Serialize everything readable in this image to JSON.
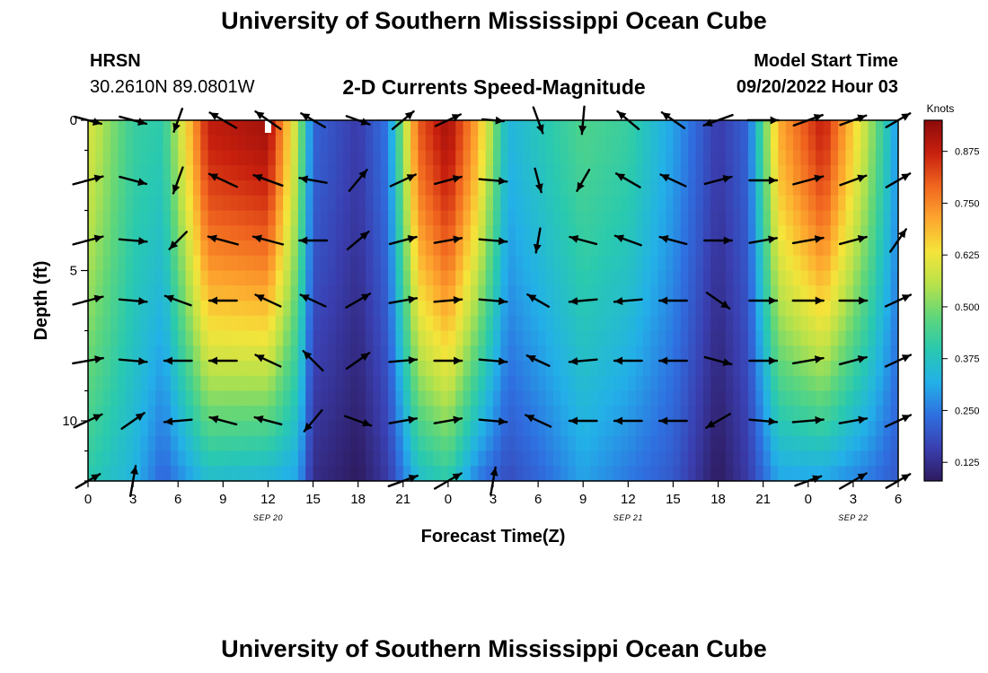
{
  "header": {
    "title": "University of Southern Mississippi Ocean Cube",
    "station": "HRSN",
    "coordinates": "30.2610N  89.0801W",
    "chart_title": "2-D Currents Speed-Magnitude",
    "model_start_label": "Model Start Time",
    "model_start_value": "09/20/2022 Hour 03"
  },
  "footer": {
    "title": "University of Southern Mississippi Ocean Cube"
  },
  "chart_data": {
    "type": "heatmap",
    "title": "2-D Currents Speed-Magnitude",
    "xlabel": "Forecast Time(Z)",
    "ylabel": "Depth (ft)",
    "x_hours": [
      0,
      54
    ],
    "x_tick_labels": [
      "0",
      "3",
      "6",
      "9",
      "12",
      "15",
      "18",
      "21",
      "0",
      "3",
      "6",
      "9",
      "12",
      "15",
      "18",
      "21",
      "0",
      "3",
      "6"
    ],
    "date_labels": [
      {
        "text": "SEP 20",
        "hour": 12
      },
      {
        "text": "SEP 21",
        "hour": 36
      },
      {
        "text": "SEP 22",
        "hour": 51
      }
    ],
    "y_range_ft": [
      0,
      12
    ],
    "y_ticks": [
      0,
      5,
      10
    ],
    "y_tick_labels": [
      "0",
      "5",
      "10"
    ],
    "colorbar": {
      "unit": "Knots",
      "min": 0.08,
      "max": 0.95,
      "ticks": [
        0.125,
        0.25,
        0.375,
        0.5,
        0.625,
        0.75,
        0.875
      ],
      "tick_labels": [
        "0.125",
        "0.250",
        "0.375",
        "0.500",
        "0.625",
        "0.750",
        "0.875"
      ]
    },
    "speed_model": {
      "description": "Approximate current speed (knots) by forecast hour at surface and at 12 ft depth",
      "anchors": [
        {
          "hour": 0,
          "surface": 0.6,
          "bottom": 0.4
        },
        {
          "hour": 3,
          "surface": 0.42,
          "bottom": 0.33
        },
        {
          "hour": 5,
          "surface": 0.4,
          "bottom": 0.22
        },
        {
          "hour": 8,
          "surface": 0.88,
          "bottom": 0.35
        },
        {
          "hour": 12,
          "surface": 0.92,
          "bottom": 0.33
        },
        {
          "hour": 14,
          "surface": 0.55,
          "bottom": 0.3
        },
        {
          "hour": 15,
          "surface": 0.22,
          "bottom": 0.12
        },
        {
          "hour": 18,
          "surface": 0.15,
          "bottom": 0.08
        },
        {
          "hour": 20,
          "surface": 0.25,
          "bottom": 0.15
        },
        {
          "hour": 22,
          "surface": 0.8,
          "bottom": 0.35
        },
        {
          "hour": 24,
          "surface": 0.92,
          "bottom": 0.4
        },
        {
          "hour": 26,
          "surface": 0.7,
          "bottom": 0.25
        },
        {
          "hour": 28,
          "surface": 0.33,
          "bottom": 0.18
        },
        {
          "hour": 30,
          "surface": 0.38,
          "bottom": 0.22
        },
        {
          "hour": 33,
          "surface": 0.45,
          "bottom": 0.3
        },
        {
          "hour": 36,
          "surface": 0.42,
          "bottom": 0.25
        },
        {
          "hour": 39,
          "surface": 0.3,
          "bottom": 0.2
        },
        {
          "hour": 42,
          "surface": 0.15,
          "bottom": 0.08
        },
        {
          "hour": 44,
          "surface": 0.22,
          "bottom": 0.15
        },
        {
          "hour": 46,
          "surface": 0.7,
          "bottom": 0.3
        },
        {
          "hour": 49,
          "surface": 0.88,
          "bottom": 0.3
        },
        {
          "hour": 52,
          "surface": 0.55,
          "bottom": 0.25
        },
        {
          "hour": 54,
          "surface": 0.28,
          "bottom": 0.2
        }
      ]
    },
    "vector_grid": {
      "description": "Velocity arrows at forecast hours 0–54 (every 3h) and depths 0–12 ft (every 2 ft); angle in degrees (0=east, counter-clockwise), relative length 0–1",
      "hours": [
        0,
        3,
        6,
        9,
        12,
        15,
        18,
        21,
        24,
        27,
        30,
        33,
        36,
        39,
        42,
        45,
        48,
        51,
        54
      ],
      "depths_ft": [
        0,
        2,
        4,
        6,
        8,
        10,
        12
      ],
      "angle_deg": [
        [
          -15,
          -15,
          -110,
          150,
          145,
          150,
          -20,
          40,
          25,
          -5,
          -70,
          -95,
          140,
          145,
          200,
          0,
          20,
          20,
          30
        ],
        [
          15,
          -15,
          -110,
          155,
          160,
          170,
          50,
          25,
          15,
          -5,
          -75,
          -120,
          150,
          155,
          15,
          0,
          15,
          20,
          30
        ],
        [
          15,
          -5,
          -135,
          165,
          165,
          180,
          40,
          15,
          10,
          -5,
          -100,
          165,
          160,
          165,
          0,
          10,
          10,
          15,
          55
        ],
        [
          15,
          -5,
          160,
          180,
          155,
          155,
          30,
          10,
          5,
          -5,
          150,
          -175,
          -175,
          -180,
          -35,
          0,
          0,
          0,
          25
        ],
        [
          10,
          -5,
          -180,
          180,
          155,
          135,
          35,
          5,
          0,
          -5,
          155,
          -175,
          -180,
          -180,
          -15,
          0,
          10,
          15,
          25
        ],
        [
          25,
          35,
          -175,
          165,
          165,
          -130,
          -20,
          10,
          10,
          -5,
          155,
          -180,
          -180,
          -180,
          -150,
          -5,
          5,
          10,
          25
        ],
        [
          30,
          80,
          -180,
          -180,
          -180,
          -180,
          0,
          20,
          30,
          80,
          -180,
          -180,
          -180,
          -180,
          -180,
          -180,
          20,
          30,
          30
        ]
      ],
      "length": [
        [
          0.9,
          0.9,
          0.8,
          1,
          1,
          0.9,
          0.8,
          0.9,
          0.9,
          0.7,
          0.9,
          0.9,
          0.9,
          0.9,
          1,
          1,
          1,
          0.9,
          0.9
        ],
        [
          1,
          0.9,
          0.9,
          1,
          1,
          0.9,
          0.9,
          0.9,
          0.9,
          0.9,
          0.8,
          0.8,
          0.9,
          0.9,
          0.9,
          0.9,
          1,
          0.9,
          0.9
        ],
        [
          1,
          0.9,
          0.8,
          1,
          1,
          0.9,
          0.9,
          0.9,
          0.9,
          0.9,
          0.8,
          0.9,
          0.9,
          0.9,
          0.9,
          0.9,
          1,
          0.9,
          0.9
        ],
        [
          1,
          0.9,
          0.9,
          0.9,
          0.9,
          0.9,
          0.9,
          0.9,
          0.9,
          0.9,
          0.8,
          0.9,
          0.9,
          0.9,
          0.9,
          0.9,
          1,
          0.9,
          0.9
        ],
        [
          1,
          0.9,
          0.9,
          0.9,
          0.9,
          0.9,
          0.9,
          0.9,
          0.9,
          0.9,
          0.8,
          0.9,
          0.9,
          0.9,
          0.9,
          0.9,
          1,
          0.9,
          0.9
        ],
        [
          1,
          0.9,
          0.9,
          0.9,
          0.9,
          0.9,
          0.9,
          0.9,
          0.9,
          0.9,
          0.9,
          0.9,
          0.9,
          0.9,
          0.9,
          0.9,
          1,
          0.9,
          0.9
        ],
        [
          0.9,
          1,
          0,
          0,
          0,
          0,
          0,
          1,
          1,
          0.9,
          0,
          0,
          0,
          0,
          0,
          0,
          0.9,
          1,
          0.9
        ]
      ]
    }
  },
  "colors": {
    "colormap": [
      "#2e1a5e",
      "#3a3fb0",
      "#2f6fe0",
      "#23b0e8",
      "#29c9b0",
      "#5fd67a",
      "#b8e24a",
      "#f5e43a",
      "#fda62e",
      "#f0651f",
      "#c8200e",
      "#8c0a0a"
    ],
    "arrow": "#000000",
    "marker": "#ffffff"
  }
}
